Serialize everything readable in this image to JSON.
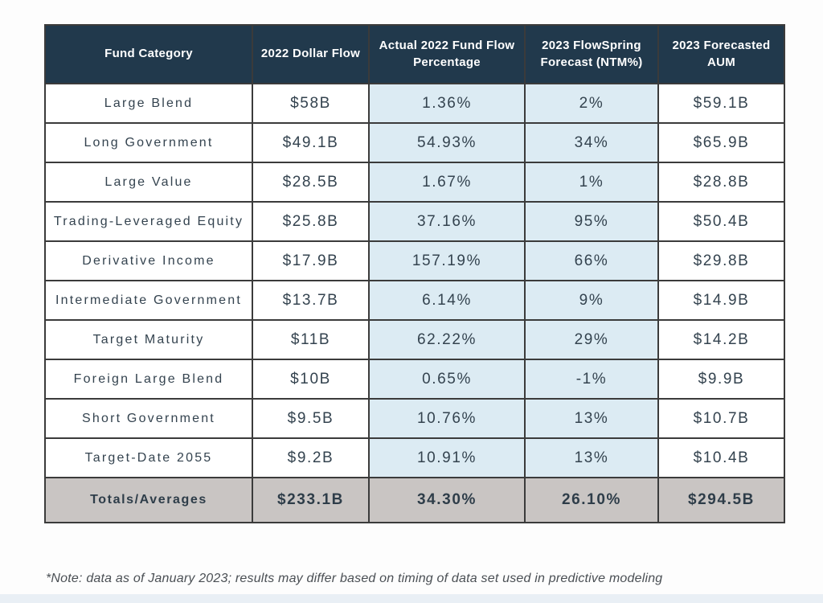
{
  "colors": {
    "header_bg": "#21394c",
    "header_text": "#ffffff",
    "body_text": "#34434f",
    "highlight_column_bg": "#dcebf3",
    "totals_row_bg": "#c9c5c3",
    "border": "#3b3b3b",
    "page_bg": "#fdfdfd",
    "footer_strip": "#e9eff5",
    "note_text": "#4a4f54"
  },
  "chart_data": {
    "type": "table",
    "title": "",
    "columns": [
      "Fund Category",
      "2022 Dollar Flow",
      "Actual 2022 Fund Flow Percentage",
      "2023 FlowSpring Forecast (NTM%)",
      "2023 Forecasted AUM"
    ],
    "rows": [
      [
        "Large Blend",
        "$58B",
        "1.36%",
        "2%",
        "$59.1B"
      ],
      [
        "Long Government",
        "$49.1B",
        "54.93%",
        "34%",
        "$65.9B"
      ],
      [
        "Large Value",
        "$28.5B",
        "1.67%",
        "1%",
        "$28.8B"
      ],
      [
        "Trading-Leveraged Equity",
        "$25.8B",
        "37.16%",
        "95%",
        "$50.4B"
      ],
      [
        "Derivative Income",
        "$17.9B",
        "157.19%",
        "66%",
        "$29.8B"
      ],
      [
        "Intermediate Government",
        "$13.7B",
        "6.14%",
        "9%",
        "$14.9B"
      ],
      [
        "Target Maturity",
        "$11B",
        "62.22%",
        "29%",
        "$14.2B"
      ],
      [
        "Foreign Large Blend",
        "$10B",
        "0.65%",
        "-1%",
        "$9.9B"
      ],
      [
        "Short Government",
        "$9.5B",
        "10.76%",
        "13%",
        "$10.7B"
      ],
      [
        "Target-Date 2055",
        "$9.2B",
        "10.91%",
        "13%",
        "$10.4B"
      ]
    ],
    "totals": [
      "Totals/Averages",
      "$233.1B",
      "34.30%",
      "26.10%",
      "$294.5B"
    ],
    "highlighted_column_indexes": [
      2,
      3
    ],
    "layout": {
      "grid": true,
      "header_style": "dark-navy",
      "totals_style": "gray"
    }
  },
  "footnote": "*Note: data as of January 2023; results may differ based on timing of data set used in predictive modeling"
}
